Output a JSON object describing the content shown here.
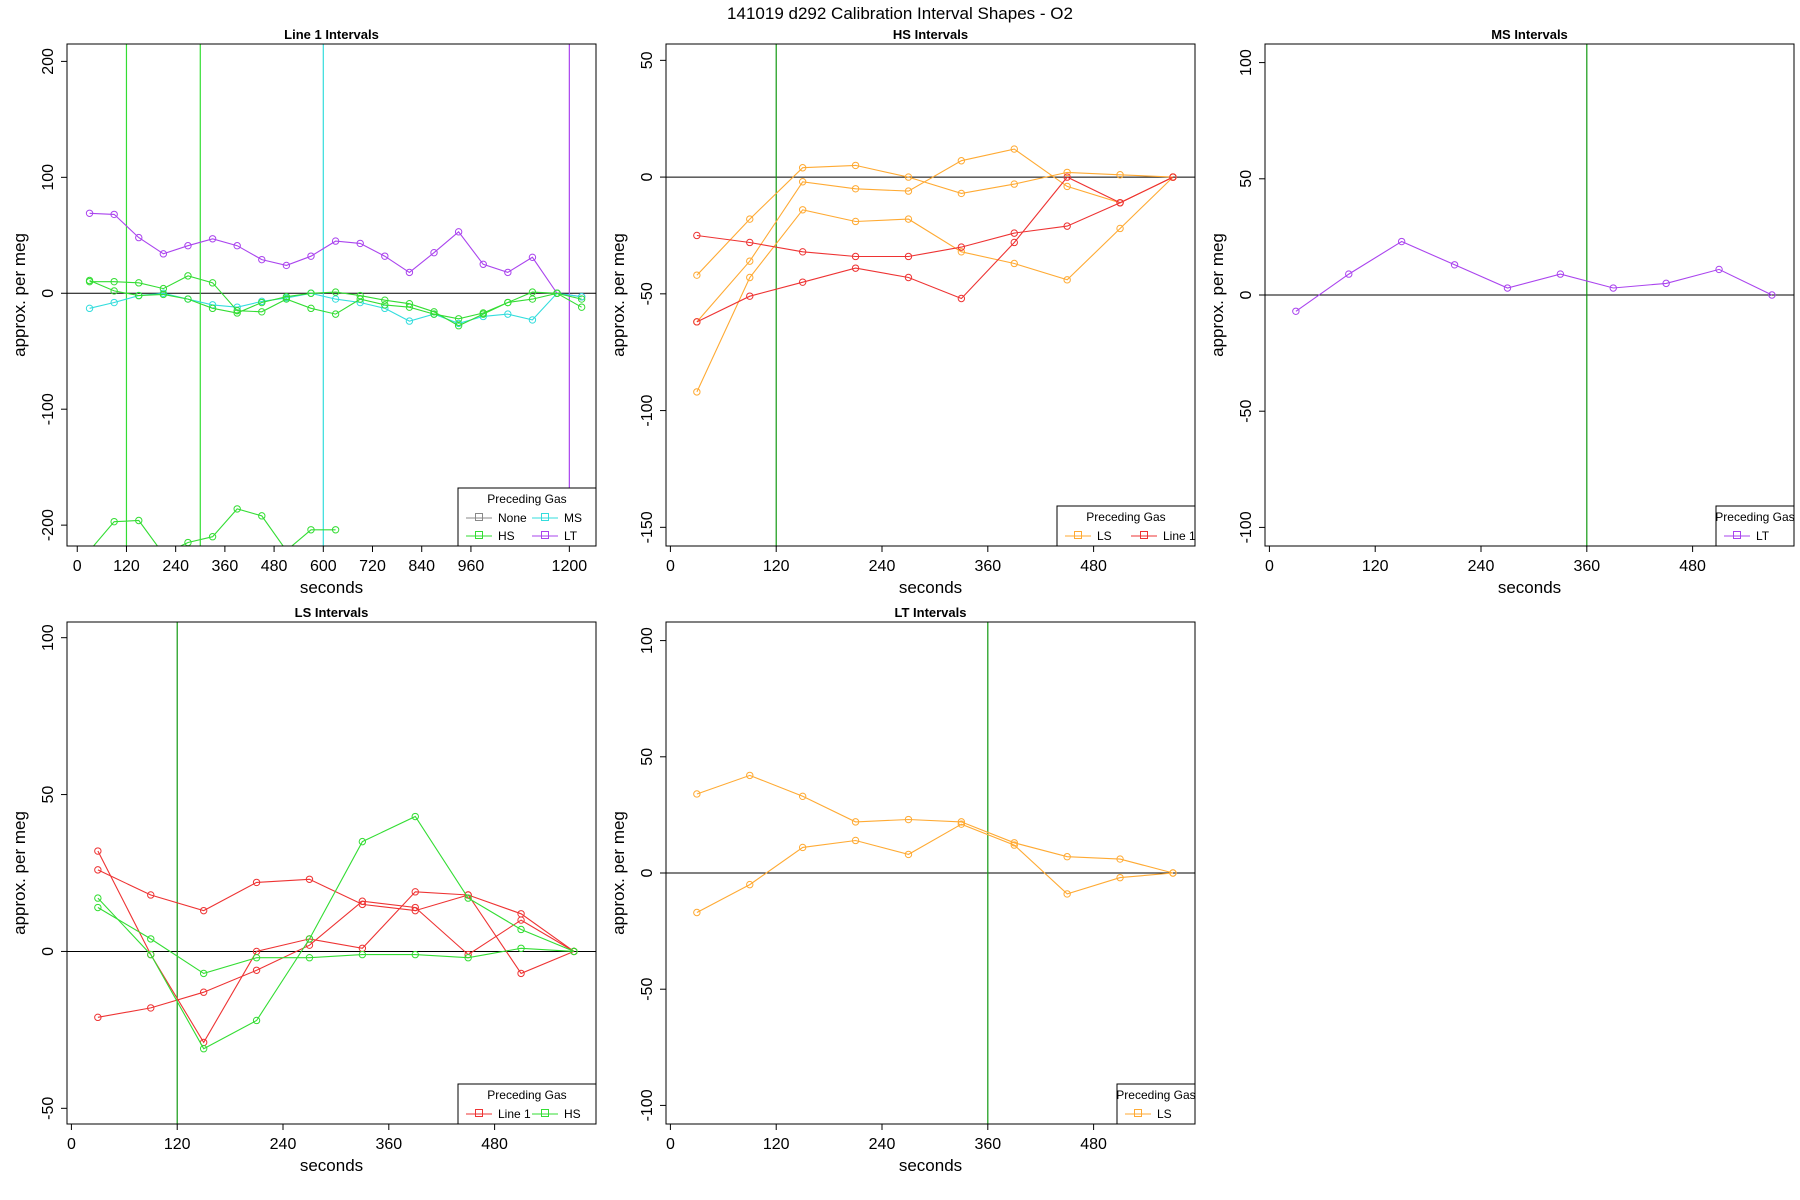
{
  "title": "141019   d292   Calibration Interval Shapes - O2",
  "colors": {
    "None": "#888888",
    "HS": "#33dd33",
    "MS": "#33dddd",
    "LT": "#aa44ee",
    "LS": "#ffaa33",
    "Line 1": "#ee3333",
    "axis": "#000000",
    "vline_green": "#119911"
  },
  "chart_data": [
    {
      "type": "line",
      "title": "Line 1 Intervals",
      "xlabel": "seconds",
      "ylabel": "approx. per meg",
      "xlim": [
        -25,
        1265
      ],
      "ylim": [
        -218,
        215
      ],
      "xticks": [
        0,
        120,
        240,
        360,
        480,
        600,
        720,
        840,
        960,
        1200
      ],
      "yticks": [
        -200,
        -100,
        0,
        100,
        200
      ],
      "vlines": [
        {
          "x": 120,
          "color": "HS"
        },
        {
          "x": 300,
          "color": "HS"
        },
        {
          "x": 600,
          "color": "MS"
        },
        {
          "x": 1200,
          "color": "LT"
        }
      ],
      "legend": {
        "title": "Preceding Gas",
        "position": "bottom-right",
        "columns": 2,
        "entries": [
          "None",
          "MS",
          "HS",
          "LT"
        ]
      },
      "series": [
        {
          "name": "LT",
          "x": [
            30,
            90,
            150,
            210,
            270,
            330,
            390,
            450,
            510,
            570,
            630,
            690,
            750,
            810,
            870,
            930,
            990,
            1050,
            1110,
            1170,
            1230
          ],
          "y": [
            69,
            68,
            48,
            34,
            41,
            47,
            41,
            29,
            24,
            32,
            45,
            43,
            32,
            18,
            35,
            53,
            25,
            18,
            31,
            0,
            -3
          ]
        },
        {
          "name": "MS",
          "x": [
            30,
            90,
            150,
            210,
            270,
            330,
            390,
            450,
            510,
            570,
            630,
            690,
            750,
            810,
            870,
            930,
            990,
            1050,
            1110,
            1170,
            1230
          ],
          "y": [
            -13,
            -8,
            -2,
            0,
            -5,
            -10,
            -12,
            -7,
            -4,
            0,
            -5,
            -8,
            -13,
            -24,
            -18,
            -26,
            -20,
            -18,
            -23,
            0,
            -3
          ]
        },
        {
          "name": "HS",
          "x": [
            30,
            90,
            150,
            210,
            270,
            330,
            390,
            450,
            510,
            570,
            630,
            690,
            750,
            810,
            870,
            930,
            990,
            1050,
            1110,
            1170,
            1230
          ],
          "y": [
            10,
            10,
            9,
            4,
            15,
            9,
            -15,
            -16,
            -5,
            -13,
            -18,
            -5,
            -10,
            -12,
            -18,
            -22,
            -17,
            -8,
            -5,
            0,
            -12
          ]
        },
        {
          "name": "HS",
          "x": [
            30,
            90,
            150,
            210,
            270,
            330,
            390,
            450,
            510,
            570,
            630,
            690,
            750,
            810,
            870,
            930,
            990,
            1050,
            1110,
            1170,
            1230
          ],
          "y": [
            11,
            2,
            -2,
            -1,
            -5,
            -13,
            -17,
            -8,
            -3,
            0,
            1,
            -2,
            -6,
            -9,
            -16,
            -28,
            -18,
            -8,
            1,
            0,
            -5
          ]
        },
        {
          "name": "HS",
          "x": [
            30,
            90,
            150,
            210,
            270,
            330,
            390,
            450,
            510,
            570,
            630
          ],
          "y": [
            -222,
            -197,
            -196,
            -225,
            -215,
            -210,
            -186,
            -192,
            -222,
            -204,
            -204
          ]
        }
      ]
    },
    {
      "type": "line",
      "title": "HS Intervals",
      "xlabel": "seconds",
      "ylabel": "approx. per meg",
      "xlim": [
        -5,
        595
      ],
      "ylim": [
        -158,
        57
      ],
      "xticks": [
        0,
        120,
        240,
        360,
        480
      ],
      "yticks": [
        -150,
        -100,
        -50,
        0,
        50
      ],
      "vlines": [
        {
          "x": 120,
          "color": "vline_green"
        }
      ],
      "legend": {
        "title": "Preceding Gas",
        "position": "bottom-right",
        "columns": 2,
        "entries": [
          "LS",
          "Line 1"
        ]
      },
      "series": [
        {
          "name": "LS",
          "x": [
            30,
            90,
            150,
            210,
            270,
            330,
            390,
            450,
            510,
            570
          ],
          "y": [
            -42,
            -18,
            4,
            5,
            0,
            -7,
            -3,
            2,
            1,
            0
          ]
        },
        {
          "name": "LS",
          "x": [
            30,
            90,
            150,
            210,
            270,
            330,
            390,
            450,
            510,
            570
          ],
          "y": [
            -62,
            -36,
            -2,
            -5,
            -6,
            7,
            12,
            -4,
            -11,
            0
          ]
        },
        {
          "name": "LS",
          "x": [
            30,
            90,
            150,
            210,
            270,
            330,
            390,
            450,
            510,
            570
          ],
          "y": [
            -92,
            -43,
            -14,
            -19,
            -18,
            -32,
            -37,
            -44,
            -22,
            0
          ]
        },
        {
          "name": "Line 1",
          "x": [
            30,
            90,
            150,
            210,
            270,
            330,
            390,
            450,
            510,
            570
          ],
          "y": [
            -25,
            -28,
            -32,
            -34,
            -34,
            -30,
            -24,
            -21,
            -11,
            0
          ]
        },
        {
          "name": "Line 1",
          "x": [
            30,
            90,
            150,
            210,
            270,
            330,
            390,
            450,
            510,
            570
          ],
          "y": [
            -62,
            -51,
            -45,
            -39,
            -43,
            -52,
            -28,
            0,
            -11,
            0
          ]
        }
      ]
    },
    {
      "type": "line",
      "title": "MS Intervals",
      "xlabel": "seconds",
      "ylabel": "approx. per meg",
      "xlim": [
        -5,
        595
      ],
      "ylim": [
        -108,
        108
      ],
      "xticks": [
        0,
        120,
        240,
        360,
        480
      ],
      "yticks": [
        -100,
        -50,
        0,
        50,
        100
      ],
      "vlines": [
        {
          "x": 360,
          "color": "vline_green"
        }
      ],
      "legend": {
        "title": "Preceding Gas",
        "position": "bottom-right",
        "columns": 1,
        "entries": [
          "LT"
        ]
      },
      "series": [
        {
          "name": "LT",
          "x": [
            30,
            90,
            150,
            210,
            270,
            330,
            390,
            450,
            510,
            570
          ],
          "y": [
            -7,
            9,
            23,
            13,
            3,
            9,
            3,
            5,
            11,
            0
          ]
        }
      ]
    },
    {
      "type": "line",
      "title": "LS Intervals",
      "xlabel": "seconds",
      "ylabel": "approx. per meg",
      "xlim": [
        -5,
        595
      ],
      "ylim": [
        -55,
        105
      ],
      "xticks": [
        0,
        120,
        240,
        360,
        480
      ],
      "yticks": [
        -50,
        0,
        50,
        100
      ],
      "vlines": [
        {
          "x": 120,
          "color": "vline_green"
        }
      ],
      "legend": {
        "title": "Preceding Gas",
        "position": "bottom-right",
        "columns": 2,
        "entries": [
          "Line 1",
          "HS"
        ]
      },
      "series": [
        {
          "name": "Line 1",
          "x": [
            30,
            90,
            150,
            210,
            270,
            330,
            390,
            450,
            510,
            570
          ],
          "y": [
            32,
            -1,
            -29,
            0,
            4,
            1,
            19,
            18,
            12,
            0
          ]
        },
        {
          "name": "Line 1",
          "x": [
            30,
            90,
            150,
            210,
            270,
            330,
            390,
            450,
            510,
            570
          ],
          "y": [
            26,
            18,
            13,
            22,
            23,
            15,
            13,
            18,
            -7,
            0
          ]
        },
        {
          "name": "Line 1",
          "x": [
            30,
            90,
            150,
            210,
            270,
            330,
            390,
            450,
            510,
            570
          ],
          "y": [
            -21,
            -18,
            -13,
            -6,
            2,
            16,
            14,
            -1,
            10,
            0
          ]
        },
        {
          "name": "HS",
          "x": [
            30,
            90,
            150,
            210,
            270,
            330,
            390,
            450,
            510,
            570
          ],
          "y": [
            17,
            -1,
            -31,
            -22,
            4,
            35,
            43,
            17,
            7,
            0
          ]
        },
        {
          "name": "HS",
          "x": [
            30,
            90,
            150,
            210,
            270,
            330,
            390,
            450,
            510,
            570
          ],
          "y": [
            14,
            4,
            -7,
            -2,
            -2,
            -1,
            -1,
            -2,
            1,
            0
          ]
        }
      ]
    },
    {
      "type": "line",
      "title": "LT Intervals",
      "xlabel": "seconds",
      "ylabel": "approx. per meg",
      "xlim": [
        -5,
        595
      ],
      "ylim": [
        -108,
        108
      ],
      "xticks": [
        0,
        120,
        240,
        360,
        480
      ],
      "yticks": [
        -100,
        -50,
        0,
        50,
        100
      ],
      "vlines": [
        {
          "x": 360,
          "color": "vline_green"
        }
      ],
      "legend": {
        "title": "Preceding Gas",
        "position": "bottom-right",
        "columns": 1,
        "entries": [
          "LS"
        ]
      },
      "series": [
        {
          "name": "LS",
          "x": [
            30,
            90,
            150,
            210,
            270,
            330,
            390,
            450,
            510,
            570
          ],
          "y": [
            34,
            42,
            33,
            22,
            23,
            22,
            13,
            7,
            6,
            0
          ]
        },
        {
          "name": "LS",
          "x": [
            30,
            90,
            150,
            210,
            270,
            330,
            390,
            450,
            510,
            570
          ],
          "y": [
            -17,
            -5,
            11,
            14,
            8,
            21,
            12,
            -9,
            -2,
            0
          ]
        }
      ]
    }
  ]
}
